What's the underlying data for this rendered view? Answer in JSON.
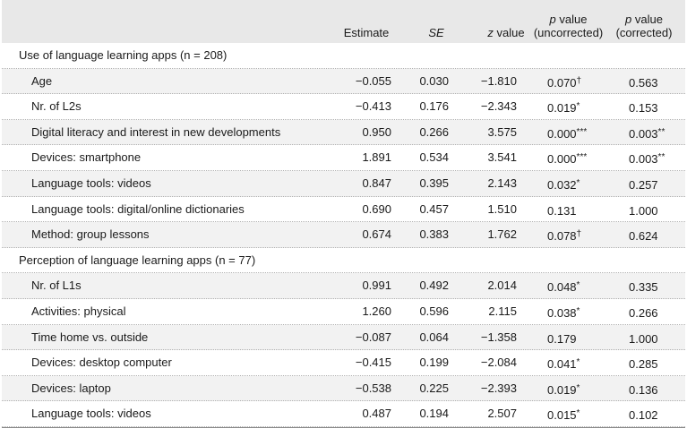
{
  "header": {
    "estimate": "Estimate",
    "se": "SE",
    "z_prefix": "z",
    "z_suffix": " value",
    "p_top_1": "p",
    "p_top_1_suffix": " value",
    "p_bottom_1": "(uncorrected)",
    "p_top_2": "p",
    "p_top_2_suffix": " value",
    "p_bottom_2": "(corrected)"
  },
  "rows": [
    {
      "type": "section",
      "label": "Use of language learning apps (n = 208)"
    },
    {
      "type": "data",
      "label": "Age",
      "estimate": "−0.055",
      "se": "0.030",
      "z": "−1.810",
      "p_unc": "0.070",
      "p_unc_mark": "†",
      "p_cor": "0.563",
      "p_cor_mark": ""
    },
    {
      "type": "data",
      "label": "Nr. of L2s",
      "estimate": "−0.413",
      "se": "0.176",
      "z": "−2.343",
      "p_unc": "0.019",
      "p_unc_mark": "*",
      "p_cor": "0.153",
      "p_cor_mark": ""
    },
    {
      "type": "data",
      "label": "Digital literacy and interest in new developments",
      "estimate": "0.950",
      "se": "0.266",
      "z": "3.575",
      "p_unc": "0.000",
      "p_unc_mark": "***",
      "p_cor": "0.003",
      "p_cor_mark": "**"
    },
    {
      "type": "data",
      "label": "Devices: smartphone",
      "estimate": "1.891",
      "se": "0.534",
      "z": "3.541",
      "p_unc": "0.000",
      "p_unc_mark": "***",
      "p_cor": "0.003",
      "p_cor_mark": "**"
    },
    {
      "type": "data",
      "label": "Language tools: videos",
      "estimate": "0.847",
      "se": "0.395",
      "z": "2.143",
      "p_unc": "0.032",
      "p_unc_mark": "*",
      "p_cor": "0.257",
      "p_cor_mark": ""
    },
    {
      "type": "data",
      "label": "Language tools: digital/online dictionaries",
      "estimate": "0.690",
      "se": "0.457",
      "z": "1.510",
      "p_unc": "0.131",
      "p_unc_mark": "",
      "p_cor": "1.000",
      "p_cor_mark": ""
    },
    {
      "type": "data",
      "label": "Method: group lessons",
      "estimate": "0.674",
      "se": "0.383",
      "z": "1.762",
      "p_unc": "0.078",
      "p_unc_mark": "†",
      "p_cor": "0.624",
      "p_cor_mark": ""
    },
    {
      "type": "section",
      "label": "Perception of language learning apps (n = 77)"
    },
    {
      "type": "data",
      "label": "Nr. of L1s",
      "estimate": "0.991",
      "se": "0.492",
      "z": "2.014",
      "p_unc": "0.048",
      "p_unc_mark": "*",
      "p_cor": "0.335",
      "p_cor_mark": ""
    },
    {
      "type": "data",
      "label": "Activities: physical",
      "estimate": "1.260",
      "se": "0.596",
      "z": "2.115",
      "p_unc": "0.038",
      "p_unc_mark": "*",
      "p_cor": "0.266",
      "p_cor_mark": ""
    },
    {
      "type": "data",
      "label": "Time home vs. outside",
      "estimate": "−0.087",
      "se": "0.064",
      "z": "−1.358",
      "p_unc": "0.179",
      "p_unc_mark": "",
      "p_cor": "1.000",
      "p_cor_mark": ""
    },
    {
      "type": "data",
      "label": "Devices: desktop computer",
      "estimate": "−0.415",
      "se": "0.199",
      "z": "−2.084",
      "p_unc": "0.041",
      "p_unc_mark": "*",
      "p_cor": "0.285",
      "p_cor_mark": ""
    },
    {
      "type": "data",
      "label": "Devices: laptop",
      "estimate": "−0.538",
      "se": "0.225",
      "z": "−2.393",
      "p_unc": "0.019",
      "p_unc_mark": "*",
      "p_cor": "0.136",
      "p_cor_mark": ""
    },
    {
      "type": "data",
      "label": "Language tools: videos",
      "estimate": "0.487",
      "se": "0.194",
      "z": "2.507",
      "p_unc": "0.015",
      "p_unc_mark": "*",
      "p_cor": "0.102",
      "p_cor_mark": ""
    }
  ]
}
